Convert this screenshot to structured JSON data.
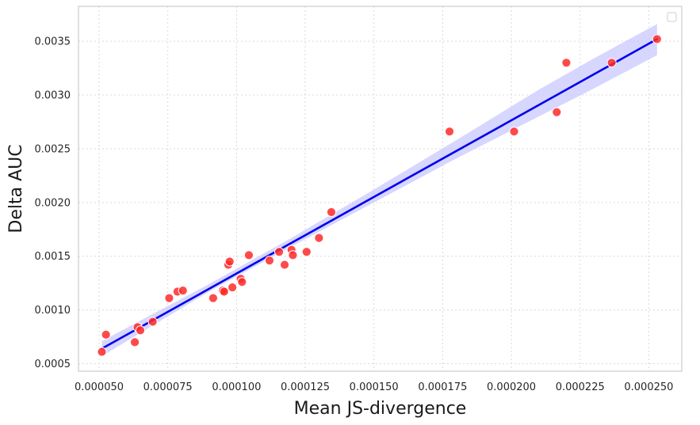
{
  "chart_data": {
    "type": "scatter",
    "title": "",
    "xlabel": "Mean JS-divergence",
    "ylabel": "Delta AUC",
    "xlim": [
      4.25e-05,
      0.000262
    ],
    "ylim": [
      0.00043,
      0.003825
    ],
    "xticks": [
      5e-05,
      7.5e-05,
      0.0001,
      0.000125,
      0.00015,
      0.000175,
      0.0002,
      0.000225,
      0.00025
    ],
    "xtick_labels": [
      "0.000050",
      "0.000075",
      "0.000100",
      "0.000125",
      "0.000150",
      "0.000175",
      "0.000200",
      "0.000225",
      "0.000250"
    ],
    "yticks": [
      0.0005,
      0.001,
      0.0015,
      0.002,
      0.0025,
      0.003,
      0.0035
    ],
    "ytick_labels": [
      "0.0005",
      "0.0010",
      "0.0015",
      "0.0020",
      "0.0025",
      "0.0030",
      "0.0035"
    ],
    "grid": true,
    "legend": "top-right",
    "points": [
      [
        5.1e-05,
        0.00061
      ],
      [
        5.25e-05,
        0.00077
      ],
      [
        6.3e-05,
        0.0007
      ],
      [
        6.4e-05,
        0.00084
      ],
      [
        6.5e-05,
        0.00081
      ],
      [
        6.95e-05,
        0.00089
      ],
      [
        7.55e-05,
        0.00111
      ],
      [
        7.85e-05,
        0.00117
      ],
      [
        8.05e-05,
        0.00118
      ],
      [
        9.15e-05,
        0.00111
      ],
      [
        9.5e-05,
        0.00118
      ],
      [
        9.55e-05,
        0.00117
      ],
      [
        9.7e-05,
        0.00142
      ],
      [
        9.75e-05,
        0.00145
      ],
      [
        9.85e-05,
        0.00121
      ],
      [
        0.0001015,
        0.00129
      ],
      [
        0.000102,
        0.00126
      ],
      [
        0.0001045,
        0.00151
      ],
      [
        0.000112,
        0.00146
      ],
      [
        0.0001155,
        0.00154
      ],
      [
        0.0001175,
        0.00142
      ],
      [
        0.00012,
        0.00156
      ],
      [
        0.0001205,
        0.00151
      ],
      [
        0.0001255,
        0.00154
      ],
      [
        0.00013,
        0.00167
      ],
      [
        0.0001345,
        0.00191
      ],
      [
        0.0001775,
        0.00266
      ],
      [
        0.000201,
        0.00266
      ],
      [
        0.0002165,
        0.00284
      ],
      [
        0.00022,
        0.0033
      ],
      [
        0.0002365,
        0.0033
      ],
      [
        0.000253,
        0.00352
      ]
    ],
    "fit_line": {
      "x": [
        5.1e-05,
        0.000253
      ],
      "y": [
        0.00064,
        0.00352
      ]
    },
    "ci_band": {
      "x": [
        5.1e-05,
        9e-05,
        0.00012,
        0.00015,
        0.00018,
        0.00021,
        0.00023,
        0.000253
      ],
      "lower": [
        0.00057,
        0.00117,
        0.00159,
        0.002,
        0.00241,
        0.0028,
        0.00306,
        0.00337
      ],
      "upper": [
        0.00071,
        0.00124,
        0.00167,
        0.00212,
        0.00258,
        0.00305,
        0.00334,
        0.00366
      ]
    },
    "colors": {
      "points": "#ff2a2a",
      "point_edge": "#ffffff",
      "line": "#0000ee",
      "band": "#c8c8ff",
      "frame": "#cccccc"
    }
  }
}
